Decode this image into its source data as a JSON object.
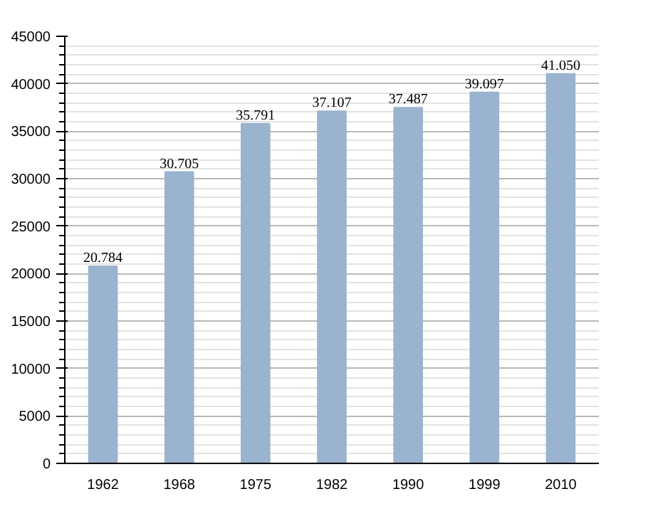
{
  "chart_data": {
    "type": "bar",
    "categories": [
      "1962",
      "1968",
      "1975",
      "1982",
      "1990",
      "1999",
      "2010"
    ],
    "values": [
      20784,
      30705,
      35791,
      37107,
      37487,
      39097,
      41050
    ],
    "value_labels": [
      "20.784",
      "30.705",
      "35.791",
      "37.107",
      "37.487",
      "39.097",
      "41.050"
    ],
    "color": "#9ab3cf",
    "ylim": [
      0,
      45000
    ],
    "yticks": [
      0,
      5000,
      10000,
      15000,
      20000,
      25000,
      30000,
      35000,
      40000,
      45000
    ],
    "grid": "y"
  }
}
